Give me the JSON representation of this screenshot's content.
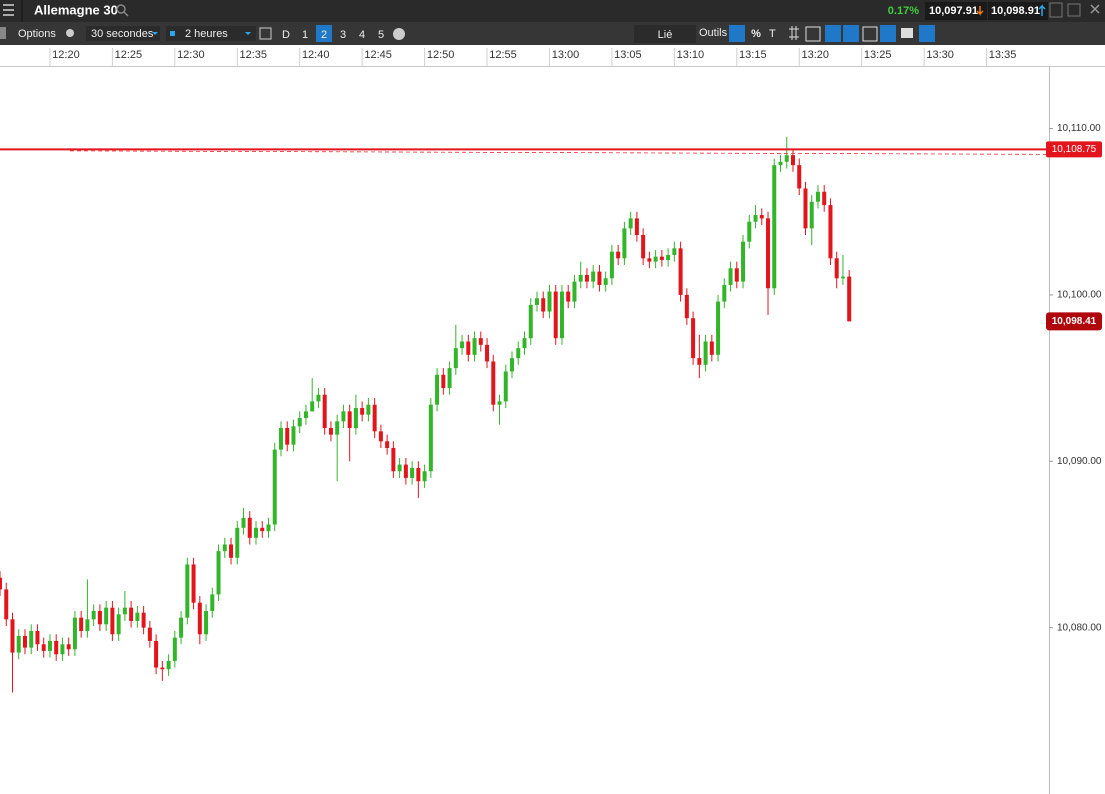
{
  "header": {
    "title": "Allemagne 30",
    "change": "0.17%",
    "sell": "10,097.91",
    "buy": "10,098.91"
  },
  "toolbar": {
    "options": "Options",
    "interval": "30 secondes",
    "range": "2 heures",
    "days": [
      "D",
      "1",
      "2",
      "3",
      "4",
      "5"
    ],
    "linked": "Lié",
    "tools": "Outils",
    "percent": "%"
  },
  "chart_data": {
    "type": "candlestick",
    "up_color": "#33b52a",
    "down_color": "#e3141c",
    "xlim": [
      736,
      820
    ],
    "xticks": [
      {
        "value": 740,
        "label": "12:20"
      },
      {
        "value": 745,
        "label": "12:25"
      },
      {
        "value": 750,
        "label": "12:30"
      },
      {
        "value": 755,
        "label": "12:35"
      },
      {
        "value": 760,
        "label": "12:40"
      },
      {
        "value": 765,
        "label": "12:45"
      },
      {
        "value": 770,
        "label": "12:50"
      },
      {
        "value": 775,
        "label": "12:55"
      },
      {
        "value": 780,
        "label": "13:00"
      },
      {
        "value": 785,
        "label": "13:05"
      },
      {
        "value": 790,
        "label": "13:10"
      },
      {
        "value": 795,
        "label": "13:15"
      },
      {
        "value": 800,
        "label": "13:20"
      },
      {
        "value": 805,
        "label": "13:25"
      },
      {
        "value": 810,
        "label": "13:30"
      },
      {
        "value": 815,
        "label": "13:35"
      }
    ],
    "ylim": [
      10070,
      10113.7
    ],
    "yticks": [
      {
        "value": 10080,
        "label": "10,080.00"
      },
      {
        "value": 10090,
        "label": "10,090.00"
      },
      {
        "value": 10100,
        "label": "10,100.00"
      },
      {
        "value": 10110,
        "label": "10,110.00"
      }
    ],
    "level": {
      "value": 10108.75,
      "label": "10,108.75",
      "color": "#e3141c"
    },
    "last": {
      "value": 10098.41,
      "label": "10,098.41",
      "color": "#b0070d"
    },
    "x": [
      736,
      736.5,
      737,
      737.5,
      738,
      738.5,
      739,
      739.5,
      740,
      740.5,
      741,
      741.5,
      742,
      742.5,
      743,
      743.5,
      744,
      744.5,
      745,
      745.5,
      746,
      746.5,
      747,
      747.5,
      748,
      748.5,
      749,
      749.5,
      750,
      750.5,
      751,
      751.5,
      752,
      752.5,
      753,
      753.5,
      754,
      754.5,
      755,
      755.5,
      756,
      756.5,
      757,
      757.5,
      758,
      758.5,
      759,
      759.5,
      760,
      760.5,
      761,
      761.5,
      762,
      762.5,
      763,
      763.5,
      764,
      764.5,
      765,
      765.5,
      766,
      766.5,
      767,
      767.5,
      768,
      768.5,
      769,
      769.5,
      770,
      770.5,
      771,
      771.5,
      772,
      772.5,
      773,
      773.5,
      774,
      774.5,
      775,
      775.5,
      776,
      776.5,
      777,
      777.5,
      778,
      778.5,
      779,
      779.5,
      780,
      780.5,
      781,
      781.5,
      782,
      782.5,
      783,
      783.5,
      784,
      784.5,
      785,
      785.5,
      786,
      786.5,
      787,
      787.5,
      788,
      788.5,
      789,
      789.5,
      790,
      790.5,
      791,
      791.5,
      792,
      792.5,
      793,
      793.5,
      794,
      794.5,
      795,
      795.5,
      796,
      796.5,
      797,
      797.5,
      798,
      798.5,
      799,
      799.5,
      800,
      800.5,
      801,
      801.5,
      802,
      802.5,
      803,
      803.5,
      804
    ],
    "open": [
      10083.0,
      10082.3,
      10080.5,
      10078.5,
      10079.5,
      10078.8,
      10079.8,
      10079.0,
      10078.6,
      10079.2,
      10078.4,
      10079.0,
      10078.7,
      10080.6,
      10079.8,
      10080.5,
      10081.0,
      10080.2,
      10081.2,
      10079.6,
      10080.8,
      10081.2,
      10080.4,
      10080.9,
      10080.0,
      10079.2,
      10077.6,
      10077.5,
      10078.0,
      10079.4,
      10080.6,
      10083.8,
      10081.5,
      10079.6,
      10081.0,
      10082.0,
      10084.6,
      10085.0,
      10084.2,
      10086.0,
      10086.6,
      10085.4,
      10086.0,
      10085.8,
      10086.2,
      10090.7,
      10092.0,
      10091.0,
      10092.1,
      10092.6,
      10093.0,
      10093.6,
      10094.0,
      10092.0,
      10091.6,
      10092.4,
      10093.0,
      10092.0,
      10093.2,
      10092.8,
      10093.4,
      10091.8,
      10091.2,
      10090.8,
      10089.4,
      10089.8,
      10089.0,
      10089.6,
      10088.8,
      10089.4,
      10093.4,
      10095.2,
      10094.4,
      10095.6,
      10096.8,
      10097.2,
      10096.4,
      10097.4,
      10097.0,
      10096.0,
      10093.4,
      10093.6,
      10095.4,
      10096.2,
      10096.8,
      10097.4,
      10099.4,
      10099.8,
      10099.0,
      10100.2,
      10097.4,
      10100.2,
      10099.6,
      10100.8,
      10101.2,
      10100.8,
      10101.4,
      10100.6,
      10101.0,
      10102.6,
      10102.2,
      10104.0,
      10104.6,
      10103.6,
      10102.2,
      10102.0,
      10102.3,
      10102.1,
      10102.4,
      10102.8,
      10100.0,
      10098.6,
      10096.2,
      10095.8,
      10097.2,
      10096.4,
      10099.6,
      10100.6,
      10101.6,
      10100.8,
      10103.2,
      10104.4,
      10104.8,
      10104.6,
      10100.4,
      10107.8,
      10108.0,
      10108.4,
      10107.8,
      10106.4,
      10104.0,
      10105.6,
      10106.2,
      10105.4,
      10102.2,
      10101.0,
      10101.1
    ],
    "high": [
      10083.4,
      10082.7,
      10080.9,
      10079.9,
      10079.9,
      10080.2,
      10080.2,
      10079.4,
      10079.6,
      10079.6,
      10079.4,
      10079.4,
      10081.0,
      10081.0,
      10082.9,
      10081.4,
      10081.4,
      10081.6,
      10081.6,
      10081.2,
      10082.2,
      10081.6,
      10081.3,
      10081.3,
      10080.4,
      10079.6,
      10078.0,
      10078.4,
      10079.8,
      10081.0,
      10084.2,
      10084.2,
      10081.9,
      10081.4,
      10082.4,
      10085.0,
      10085.4,
      10085.4,
      10086.4,
      10087.2,
      10087.0,
      10086.4,
      10086.4,
      10086.6,
      10091.1,
      10092.4,
      10092.4,
      10092.5,
      10093.0,
      10093.4,
      10095.0,
      10094.4,
      10094.4,
      10092.4,
      10092.8,
      10093.4,
      10093.4,
      10094.0,
      10093.6,
      10093.8,
      10093.8,
      10092.2,
      10091.6,
      10091.2,
      10090.2,
      10090.2,
      10090.0,
      10090.0,
      10089.8,
      10093.8,
      10095.6,
      10095.6,
      10096.0,
      10098.2,
      10097.6,
      10097.6,
      10097.8,
      10097.8,
      10097.4,
      10096.4,
      10094.0,
      10095.8,
      10096.6,
      10097.2,
      10097.8,
      10099.8,
      10100.2,
      10100.2,
      10100.6,
      10100.6,
      10100.6,
      10100.6,
      10101.2,
      10102.0,
      10101.6,
      10101.8,
      10101.8,
      10101.4,
      10103.0,
      10103.0,
      10104.4,
      10105.0,
      10105.0,
      10104.0,
      10102.6,
      10102.7,
      10102.7,
      10102.8,
      10103.2,
      10103.2,
      10100.4,
      10099.0,
      10097.6,
      10097.6,
      10097.6,
      10100.0,
      10101.0,
      10102.0,
      10102.0,
      10103.6,
      10104.8,
      10105.4,
      10105.2,
      10105.0,
      10108.2,
      10108.4,
      10109.5,
      10108.8,
      10108.2,
      10106.8,
      10106.0,
      10106.6,
      10106.6,
      10105.8,
      10102.6,
      10102.4,
      10101.5
    ],
    "low": [
      10081.9,
      10080.1,
      10076.1,
      10078.1,
      10078.4,
      10078.4,
      10078.6,
      10078.2,
      10078.2,
      10078.0,
      10078.0,
      10078.3,
      10078.3,
      10079.4,
      10079.4,
      10080.1,
      10079.8,
      10079.8,
      10079.2,
      10079.2,
      10080.4,
      10080.0,
      10080.0,
      10079.6,
      10078.8,
      10077.2,
      10076.8,
      10077.1,
      10077.6,
      10079.0,
      10080.2,
      10081.1,
      10079.0,
      10079.2,
      10080.6,
      10081.6,
      10084.2,
      10083.8,
      10083.8,
      10085.6,
      10085.0,
      10085.0,
      10085.4,
      10085.4,
      10085.8,
      10090.3,
      10090.6,
      10090.6,
      10091.7,
      10092.2,
      10093.0,
      10093.2,
      10091.6,
      10091.2,
      10088.8,
      10092.0,
      10090.0,
      10091.6,
      10092.4,
      10092.4,
      10091.4,
      10090.8,
      10090.4,
      10089.0,
      10089.0,
      10088.6,
      10088.6,
      10087.8,
      10088.4,
      10089.0,
      10093.0,
      10094.0,
      10094.0,
      10095.2,
      10096.4,
      10096.0,
      10096.0,
      10096.6,
      10095.6,
      10093.0,
      10092.2,
      10093.2,
      10095.0,
      10095.8,
      10096.4,
      10097.0,
      10099.0,
      10098.6,
      10098.6,
      10097.0,
      10097.0,
      10099.2,
      10099.2,
      10100.4,
      10100.4,
      10100.4,
      10100.2,
      10100.2,
      10100.6,
      10101.8,
      10101.8,
      10103.6,
      10103.2,
      10101.8,
      10101.6,
      10101.6,
      10101.7,
      10101.7,
      10102.0,
      10099.6,
      10098.2,
      10095.8,
      10095.0,
      10095.4,
      10096.0,
      10096.0,
      10099.2,
      10100.2,
      10100.4,
      10100.4,
      10102.8,
      10104.0,
      10104.2,
      10098.8,
      10100.0,
      10107.4,
      10107.6,
      10107.4,
      10106.0,
      10103.6,
      10103.0,
      10105.2,
      10105.0,
      10101.8,
      10100.4,
      10100.6,
      10098.4
    ],
    "close": [
      10082.3,
      10080.5,
      10078.5,
      10079.5,
      10078.8,
      10079.8,
      10079.0,
      10078.6,
      10079.2,
      10078.4,
      10079.0,
      10078.7,
      10080.6,
      10079.8,
      10080.5,
      10081.0,
      10080.2,
      10081.2,
      10079.6,
      10080.8,
      10081.2,
      10080.4,
      10080.9,
      10080.0,
      10079.2,
      10077.6,
      10077.5,
      10078.0,
      10079.4,
      10080.6,
      10083.8,
      10081.5,
      10079.6,
      10081.0,
      10082.0,
      10084.6,
      10085.0,
      10084.2,
      10086.0,
      10086.6,
      10085.4,
      10086.0,
      10085.8,
      10086.2,
      10090.7,
      10092.0,
      10091.0,
      10092.1,
      10092.6,
      10093.0,
      10093.6,
      10094.0,
      10092.0,
      10091.6,
      10092.4,
      10093.0,
      10092.0,
      10093.2,
      10092.8,
      10093.4,
      10091.8,
      10091.2,
      10090.8,
      10089.4,
      10089.8,
      10089.0,
      10089.6,
      10088.8,
      10089.4,
      10093.4,
      10095.2,
      10094.4,
      10095.6,
      10096.8,
      10097.2,
      10096.4,
      10097.4,
      10097.0,
      10096.0,
      10093.4,
      10093.6,
      10095.4,
      10096.2,
      10096.8,
      10097.4,
      10099.4,
      10099.8,
      10099.0,
      10100.2,
      10097.4,
      10100.2,
      10099.6,
      10100.8,
      10101.2,
      10100.8,
      10101.4,
      10100.6,
      10101.0,
      10102.6,
      10102.2,
      10104.0,
      10104.6,
      10103.6,
      10102.2,
      10102.0,
      10102.3,
      10102.1,
      10102.4,
      10102.8,
      10100.0,
      10098.6,
      10096.2,
      10095.8,
      10097.2,
      10096.4,
      10099.6,
      10100.6,
      10101.6,
      10100.8,
      10103.2,
      10104.4,
      10104.8,
      10104.6,
      10100.4,
      10107.8,
      10108.0,
      10108.4,
      10107.8,
      10106.4,
      10104.0,
      10105.6,
      10106.2,
      10105.4,
      10102.2,
      10101.0,
      10101.1,
      10098.41
    ]
  }
}
